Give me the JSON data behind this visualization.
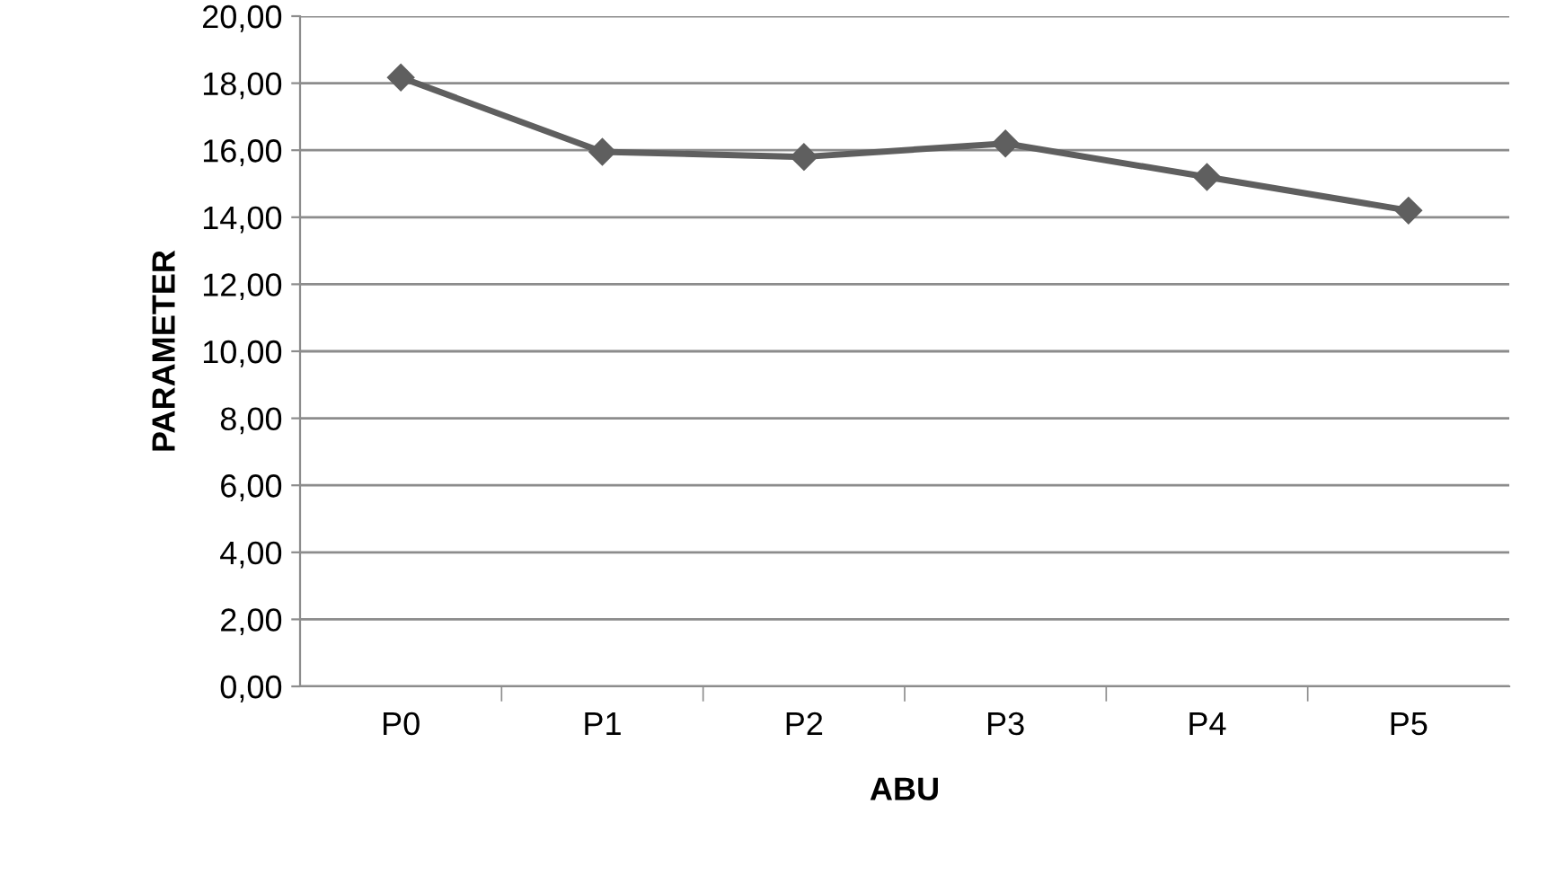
{
  "chart_data": {
    "type": "line",
    "xlabel": "ABU",
    "ylabel": "PARAMETER",
    "categories": [
      "P0",
      "P1",
      "P2",
      "P3",
      "P4",
      "P5"
    ],
    "series": [
      {
        "color": "#5f5f5f",
        "values": [
          18.17,
          15.95,
          15.8,
          16.2,
          15.2,
          14.2
        ]
      }
    ],
    "ylim": [
      0,
      20
    ],
    "yticks": [
      {
        "value": 0,
        "label": "0,00"
      },
      {
        "value": 2,
        "label": "2,00"
      },
      {
        "value": 4,
        "label": "4,00"
      },
      {
        "value": 6,
        "label": "6,00"
      },
      {
        "value": 8,
        "label": "8,00"
      },
      {
        "value": 10,
        "label": "10,00"
      },
      {
        "value": 12,
        "label": "12,00"
      },
      {
        "value": 14,
        "label": "14,00"
      },
      {
        "value": 16,
        "label": "16,00"
      },
      {
        "value": 18,
        "label": "18,00"
      },
      {
        "value": 20,
        "label": "20,00"
      }
    ],
    "grid": "y",
    "marker": "diamond",
    "line_style": "solid",
    "legend": false
  }
}
